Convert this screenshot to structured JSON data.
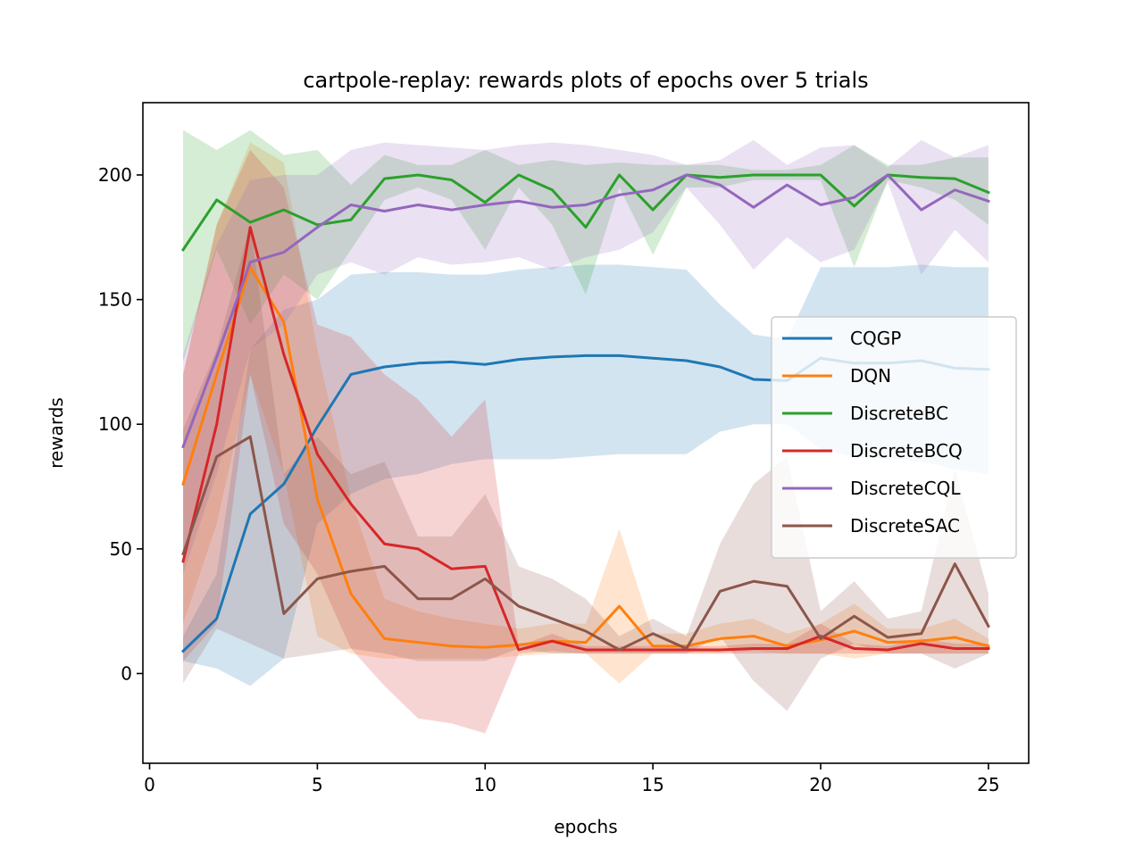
{
  "chart_data": {
    "type": "line",
    "title": "cartpole-replay: rewards plots of epochs over 5 trials",
    "xlabel": "epochs",
    "ylabel": "rewards",
    "xlim": [
      -0.2,
      26.2
    ],
    "ylim": [
      -36,
      229
    ],
    "xticks": [
      0,
      5,
      10,
      15,
      20,
      25
    ],
    "yticks": [
      0,
      50,
      100,
      150,
      200
    ],
    "grid": false,
    "legend_position": "center-right",
    "x": [
      1,
      2,
      3,
      4,
      5,
      6,
      7,
      8,
      9,
      10,
      11,
      12,
      13,
      14,
      15,
      16,
      17,
      18,
      19,
      20,
      21,
      22,
      23,
      24,
      25
    ],
    "series": [
      {
        "name": "CQGP",
        "color": "#1f77b4",
        "values": [
          9,
          22,
          64,
          76,
          99,
          120,
          123,
          124.5,
          125,
          124,
          126,
          127,
          127.5,
          127.5,
          126.5,
          125.5,
          123,
          118,
          117.5,
          126.5,
          124.5,
          124.5,
          125.5,
          122.5,
          122
        ],
        "band_lower": [
          5,
          2,
          -5,
          6,
          60,
          72,
          78,
          80,
          84,
          86,
          86,
          86,
          87,
          88,
          88,
          88,
          97,
          100,
          100,
          90,
          87,
          86,
          85,
          82,
          80
        ],
        "band_upper": [
          15,
          40,
          130,
          146,
          150,
          160,
          161,
          161,
          160,
          160,
          162,
          163,
          164,
          164,
          163,
          162,
          148,
          136,
          134,
          163,
          163,
          163,
          164,
          163,
          163
        ]
      },
      {
        "name": "DQN",
        "color": "#ff7f0e",
        "values": [
          76,
          120,
          163,
          141,
          70,
          32,
          14,
          12.5,
          11,
          10.5,
          11.5,
          13,
          12.5,
          27,
          11,
          11,
          14,
          15,
          11,
          13.5,
          17,
          12.5,
          13,
          14.5,
          11
        ],
        "band_lower": [
          20,
          60,
          120,
          80,
          15,
          8,
          6,
          6,
          6,
          6,
          7,
          8,
          8,
          -4,
          8,
          8,
          8,
          9,
          8,
          8,
          6,
          8,
          8,
          8,
          8
        ],
        "band_upper": [
          120,
          180,
          213,
          205,
          130,
          70,
          30,
          25,
          22,
          20,
          18,
          20,
          20,
          58,
          16,
          16,
          20,
          22,
          16,
          20,
          28,
          18,
          18,
          22,
          14
        ]
      },
      {
        "name": "DiscreteBC",
        "color": "#2ca02c",
        "values": [
          170,
          190,
          181,
          186,
          180,
          182,
          198.5,
          200,
          198,
          189,
          200,
          194,
          179,
          200,
          186,
          200,
          199,
          200,
          200,
          200,
          187.5,
          200,
          199,
          198.5,
          193
        ],
        "band_lower": [
          125,
          170,
          140,
          160,
          150,
          170,
          190,
          195,
          190,
          170,
          195,
          180,
          152,
          195,
          168,
          195,
          195,
          198,
          198,
          198,
          163,
          198,
          195,
          190,
          180
        ],
        "band_upper": [
          218,
          210,
          218,
          208,
          210,
          196,
          208,
          204,
          204,
          210,
          204,
          206,
          204,
          205,
          204,
          204,
          204,
          202,
          202,
          204,
          212,
          204,
          204,
          207,
          207
        ]
      },
      {
        "name": "DiscreteBCQ",
        "color": "#d62728",
        "values": [
          45,
          100,
          179,
          128,
          88,
          68,
          52,
          50,
          42,
          43,
          9.5,
          13,
          9.5,
          9.5,
          9.5,
          9.5,
          9.5,
          10,
          10,
          15,
          10,
          9.5,
          12,
          10,
          10
        ],
        "band_lower": [
          5,
          20,
          120,
          60,
          40,
          10,
          -5,
          -18,
          -20,
          -24,
          8,
          9,
          8,
          8,
          8,
          8,
          8,
          8,
          8,
          8,
          8,
          8,
          8,
          8,
          8
        ],
        "band_upper": [
          120,
          180,
          210,
          195,
          140,
          135,
          120,
          110,
          95,
          110,
          11,
          16,
          11,
          11,
          11,
          11,
          11,
          12,
          12,
          20,
          12,
          11,
          14,
          12,
          12
        ]
      },
      {
        "name": "DiscreteCQL",
        "color": "#9467bd",
        "values": [
          91,
          127,
          165,
          169,
          179,
          188,
          185.5,
          188,
          186,
          188,
          189.5,
          187,
          188,
          192,
          194,
          200,
          196,
          187,
          196,
          188,
          191,
          200,
          186,
          194,
          189.5
        ],
        "band_lower": [
          40,
          80,
          130,
          140,
          160,
          165,
          160,
          167,
          164,
          165,
          167,
          162,
          167,
          170,
          177,
          195,
          180,
          162,
          175,
          165,
          170,
          197,
          160,
          178,
          165
        ],
        "band_upper": [
          128,
          172,
          198,
          200,
          200,
          210,
          213,
          212,
          211,
          210,
          212,
          213,
          212,
          210,
          208,
          204,
          206,
          214,
          204,
          211,
          212,
          203,
          214,
          207,
          212
        ]
      },
      {
        "name": "DiscreteSAC",
        "color": "#8c564b",
        "values": [
          48,
          87,
          95,
          24,
          38,
          41,
          43,
          30,
          30,
          38,
          27,
          22,
          17,
          9.5,
          16,
          10,
          33,
          37,
          35,
          14,
          23,
          14.5,
          16,
          44,
          19
        ],
        "band_lower": [
          -4,
          18,
          12,
          6,
          8,
          10,
          8,
          5,
          5,
          5,
          10,
          8,
          8,
          8,
          8,
          8,
          15,
          -3,
          -15,
          6,
          12,
          8,
          8,
          2,
          8
        ],
        "band_upper": [
          98,
          130,
          180,
          80,
          95,
          80,
          85,
          55,
          55,
          72,
          43,
          38,
          30,
          15,
          22,
          15,
          52,
          76,
          87,
          25,
          37,
          22,
          25,
          82,
          32
        ]
      }
    ]
  }
}
